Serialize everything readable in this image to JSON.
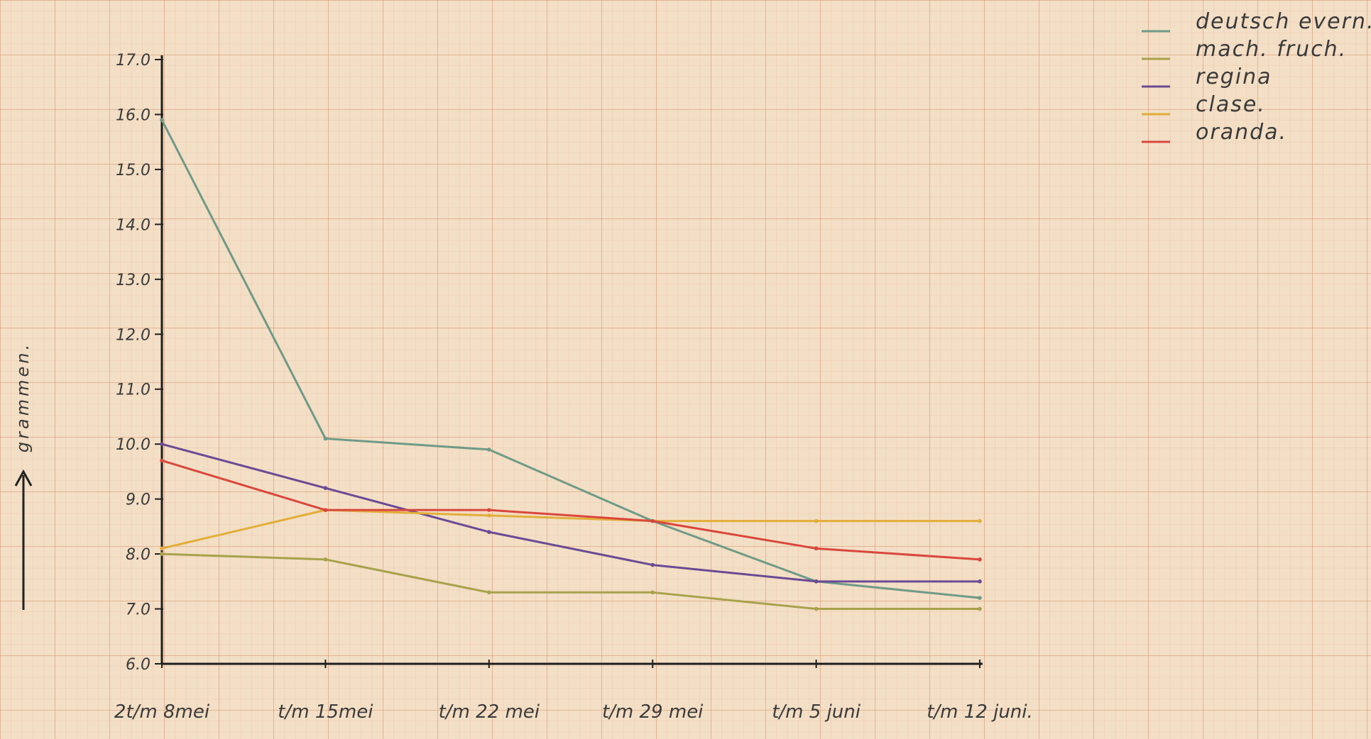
{
  "chart_data": {
    "type": "line",
    "title": "",
    "xlabel": "",
    "ylabel": "grammen.",
    "categories": [
      "2t/m 8mei",
      "t/m 15mei",
      "t/m 22 mei",
      "t/m 29 mei",
      "t/m 5 juni",
      "t/m 12 juni."
    ],
    "ylim": [
      6.0,
      17.0
    ],
    "yticks": [
      "6.0",
      "7.0",
      "8.0",
      "9.0",
      "10.0",
      "11.0",
      "12.0",
      "13.0",
      "14.0",
      "15.0",
      "16.0",
      "17.0"
    ],
    "grid": true,
    "legend_position": "top-right",
    "series": [
      {
        "name": "deutsch evern.",
        "color": "#6f9a86",
        "values": [
          15.9,
          10.1,
          9.9,
          8.6,
          7.5,
          7.2
        ]
      },
      {
        "name": "mach. fruch.",
        "color": "#a8a24c",
        "values": [
          8.0,
          7.9,
          7.3,
          7.3,
          7.0,
          7.0
        ]
      },
      {
        "name": "regina",
        "color": "#6a4a94",
        "values": [
          10.0,
          9.2,
          8.4,
          7.8,
          7.5,
          7.5
        ]
      },
      {
        "name": "clase.",
        "color": "#e2ae3a",
        "values": [
          8.1,
          8.8,
          8.7,
          8.6,
          8.6,
          8.6
        ]
      },
      {
        "name": "oranda.",
        "color": "#d9473d",
        "values": [
          9.7,
          8.8,
          8.8,
          8.6,
          8.1,
          7.9
        ]
      }
    ]
  }
}
